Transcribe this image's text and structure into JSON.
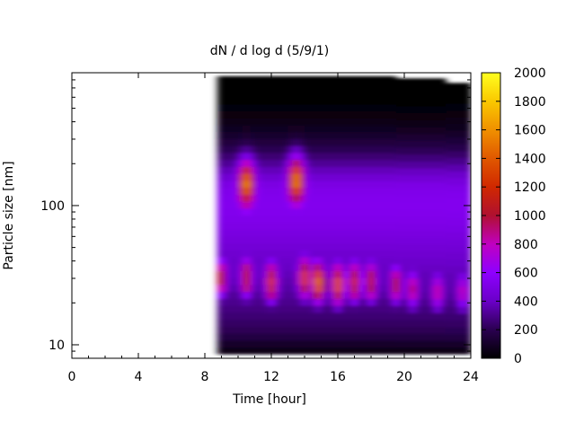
{
  "chart_data": {
    "type": "heatmap",
    "title": "dN / d log d (5/9/1)",
    "xlabel": "Time [hour]",
    "ylabel": "Particle size [nm]",
    "xlim": [
      0,
      24
    ],
    "x_ticks": [
      0,
      4,
      8,
      12,
      16,
      20,
      24
    ],
    "y_scale": "log",
    "ylim": [
      8,
      900
    ],
    "y_tick_labels": [
      {
        "value": 10,
        "label": "10"
      },
      {
        "value": 100,
        "label": "100"
      }
    ],
    "colorbar": {
      "range": [
        0,
        2000
      ],
      "ticks": [
        0,
        200,
        400,
        600,
        800,
        1000,
        1200,
        1400,
        1600,
        1800,
        2000
      ],
      "colormap": [
        "#000000",
        "#2a0050",
        "#6a00c8",
        "#8e00ff",
        "#c000c0",
        "#b01030",
        "#d02800",
        "#e05800",
        "#f09000",
        "#fac800",
        "#ffff20"
      ]
    },
    "data_start_hour": 8.75,
    "data_end_hour": 24,
    "mode_peak_sizes_nm": [
      {
        "hour": 9.0,
        "size": 30,
        "value": 1000
      },
      {
        "hour": 10.5,
        "size": 150,
        "value": 1200
      },
      {
        "hour": 10.5,
        "size": 30,
        "value": 1100
      },
      {
        "hour": 12.0,
        "size": 28,
        "value": 1250
      },
      {
        "hour": 13.5,
        "size": 160,
        "value": 1250
      },
      {
        "hour": 14.0,
        "size": 30,
        "value": 1300
      },
      {
        "hour": 14.8,
        "size": 28,
        "value": 1500
      },
      {
        "hour": 16.0,
        "size": 27,
        "value": 1400
      },
      {
        "hour": 17.0,
        "size": 28,
        "value": 1200
      },
      {
        "hour": 18.0,
        "size": 28,
        "value": 1100
      },
      {
        "hour": 19.5,
        "size": 27,
        "value": 1000
      },
      {
        "hour": 20.5,
        "size": 25,
        "value": 900
      },
      {
        "hour": 22.0,
        "size": 24,
        "value": 850
      },
      {
        "hour": 23.5,
        "size": 24,
        "value": 800
      }
    ]
  }
}
